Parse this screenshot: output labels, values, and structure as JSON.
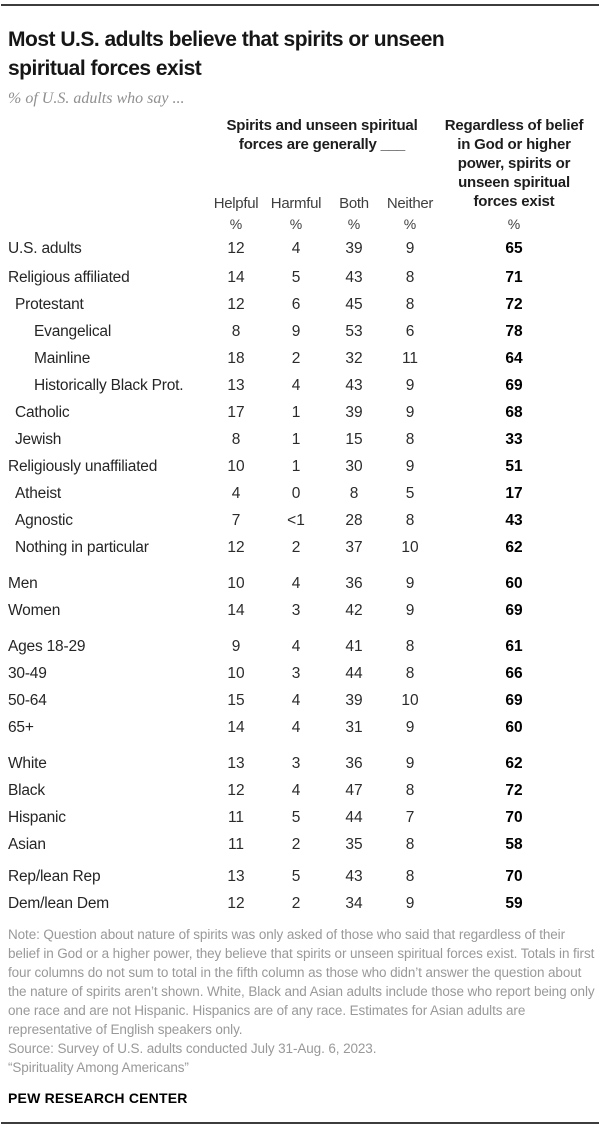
{
  "chart_data": {
    "type": "table",
    "title": "Most U.S. adults believe that spirits or unseen spiritual forces exist",
    "title_lines": [
      "Most U.S. adults believe that spirits or unseen",
      "spiritual forces exist"
    ],
    "subtitle": "% of U.S. adults who say ...",
    "column_group_left": "Spirits and unseen spiritual forces are generally ___",
    "column_group_left_lines": [
      "Spirits and unseen spiritual",
      "forces are generally ___"
    ],
    "column_group_right": "Regardless of belief in God or higher power, spirits or unseen spiritual forces exist",
    "column_group_right_lines": [
      "Regardless of belief",
      "in God or higher",
      "power, spirits or",
      "unseen spiritual",
      "forces exist"
    ],
    "columns": [
      "Helpful",
      "Harmful",
      "Both",
      "Neither"
    ],
    "unit": "%",
    "groups": [
      {
        "name": "total",
        "rows": [
          {
            "label": "U.S. adults",
            "indent": 0,
            "values": [
              "12",
              "4",
              "39",
              "9"
            ],
            "total": "65"
          }
        ]
      },
      {
        "name": "religion",
        "rows": [
          {
            "label": "Religious affiliated",
            "indent": 0,
            "values": [
              "14",
              "5",
              "43",
              "8"
            ],
            "total": "71"
          },
          {
            "label": "Protestant",
            "indent": 1,
            "values": [
              "12",
              "6",
              "45",
              "8"
            ],
            "total": "72"
          },
          {
            "label": "Evangelical",
            "indent": 2,
            "values": [
              "8",
              "9",
              "53",
              "6"
            ],
            "total": "78"
          },
          {
            "label": "Mainline",
            "indent": 2,
            "values": [
              "18",
              "2",
              "32",
              "11"
            ],
            "total": "64"
          },
          {
            "label": "Historically Black Prot.",
            "indent": 2,
            "values": [
              "13",
              "4",
              "43",
              "9"
            ],
            "total": "69"
          },
          {
            "label": "Catholic",
            "indent": 1,
            "values": [
              "17",
              "1",
              "39",
              "9"
            ],
            "total": "68"
          },
          {
            "label": "Jewish",
            "indent": 1,
            "values": [
              "8",
              "1",
              "15",
              "8"
            ],
            "total": "33"
          },
          {
            "label": "Religiously unaffiliated",
            "indent": 0,
            "values": [
              "10",
              "1",
              "30",
              "9"
            ],
            "total": "51"
          },
          {
            "label": "Atheist",
            "indent": 1,
            "values": [
              "4",
              "0",
              "8",
              "5"
            ],
            "total": "17"
          },
          {
            "label": "Agnostic",
            "indent": 1,
            "values": [
              "7",
              "<1",
              "28",
              "8"
            ],
            "total": "43"
          },
          {
            "label": "Nothing in particular",
            "indent": 1,
            "values": [
              "12",
              "2",
              "37",
              "10"
            ],
            "total": "62"
          }
        ]
      },
      {
        "name": "gender",
        "rows": [
          {
            "label": "Men",
            "indent": 0,
            "values": [
              "10",
              "4",
              "36",
              "9"
            ],
            "total": "60"
          },
          {
            "label": "Women",
            "indent": 0,
            "values": [
              "14",
              "3",
              "42",
              "9"
            ],
            "total": "69"
          }
        ]
      },
      {
        "name": "age",
        "rows": [
          {
            "label": "Ages 18-29",
            "indent": 0,
            "values": [
              "9",
              "4",
              "41",
              "8"
            ],
            "total": "61"
          },
          {
            "label": "30-49",
            "indent": 0,
            "values": [
              "10",
              "3",
              "44",
              "8"
            ],
            "total": "66"
          },
          {
            "label": "50-64",
            "indent": 0,
            "values": [
              "15",
              "4",
              "39",
              "10"
            ],
            "total": "69"
          },
          {
            "label": "65+",
            "indent": 0,
            "values": [
              "14",
              "4",
              "31",
              "9"
            ],
            "total": "60"
          }
        ]
      },
      {
        "name": "race",
        "rows": [
          {
            "label": "White",
            "indent": 0,
            "values": [
              "13",
              "3",
              "36",
              "9"
            ],
            "total": "62"
          },
          {
            "label": "Black",
            "indent": 0,
            "values": [
              "12",
              "4",
              "47",
              "8"
            ],
            "total": "72"
          },
          {
            "label": "Hispanic",
            "indent": 0,
            "values": [
              "11",
              "5",
              "44",
              "7"
            ],
            "total": "70"
          },
          {
            "label": "Asian",
            "indent": 0,
            "values": [
              "11",
              "2",
              "35",
              "8"
            ],
            "total": "58"
          }
        ]
      },
      {
        "name": "party",
        "rows": [
          {
            "label": "Rep/lean Rep",
            "indent": 0,
            "values": [
              "13",
              "5",
              "43",
              "8"
            ],
            "total": "70"
          },
          {
            "label": "Dem/lean Dem",
            "indent": 0,
            "values": [
              "12",
              "2",
              "34",
              "9"
            ],
            "total": "59"
          }
        ]
      }
    ]
  },
  "footer": {
    "note": "Note: Question about nature of spirits was only asked of those who said that regardless of their belief in God or a higher power, they believe that spirits or unseen spiritual forces exist. Totals in first four columns do not sum to total in the fifth column as those who didn’t answer the question about the nature of spirits aren’t shown. White, Black and Asian adults include those who report being only one race and are not Hispanic. Hispanics are of any race. Estimates for Asian adults are representative of English speakers only.",
    "source": "Source: Survey of U.S. adults conducted July 31-Aug. 6, 2023.",
    "quote": "“Spirituality Among Americans”",
    "brand": "PEW RESEARCH CENTER"
  },
  "colors": {
    "rule": "#3d3d3d",
    "title_text": "#161616",
    "subtitle_gray": "#8f8f8f",
    "note_gray": "#999999",
    "data_text": "#2b2b2b",
    "total_text": "#000000"
  }
}
